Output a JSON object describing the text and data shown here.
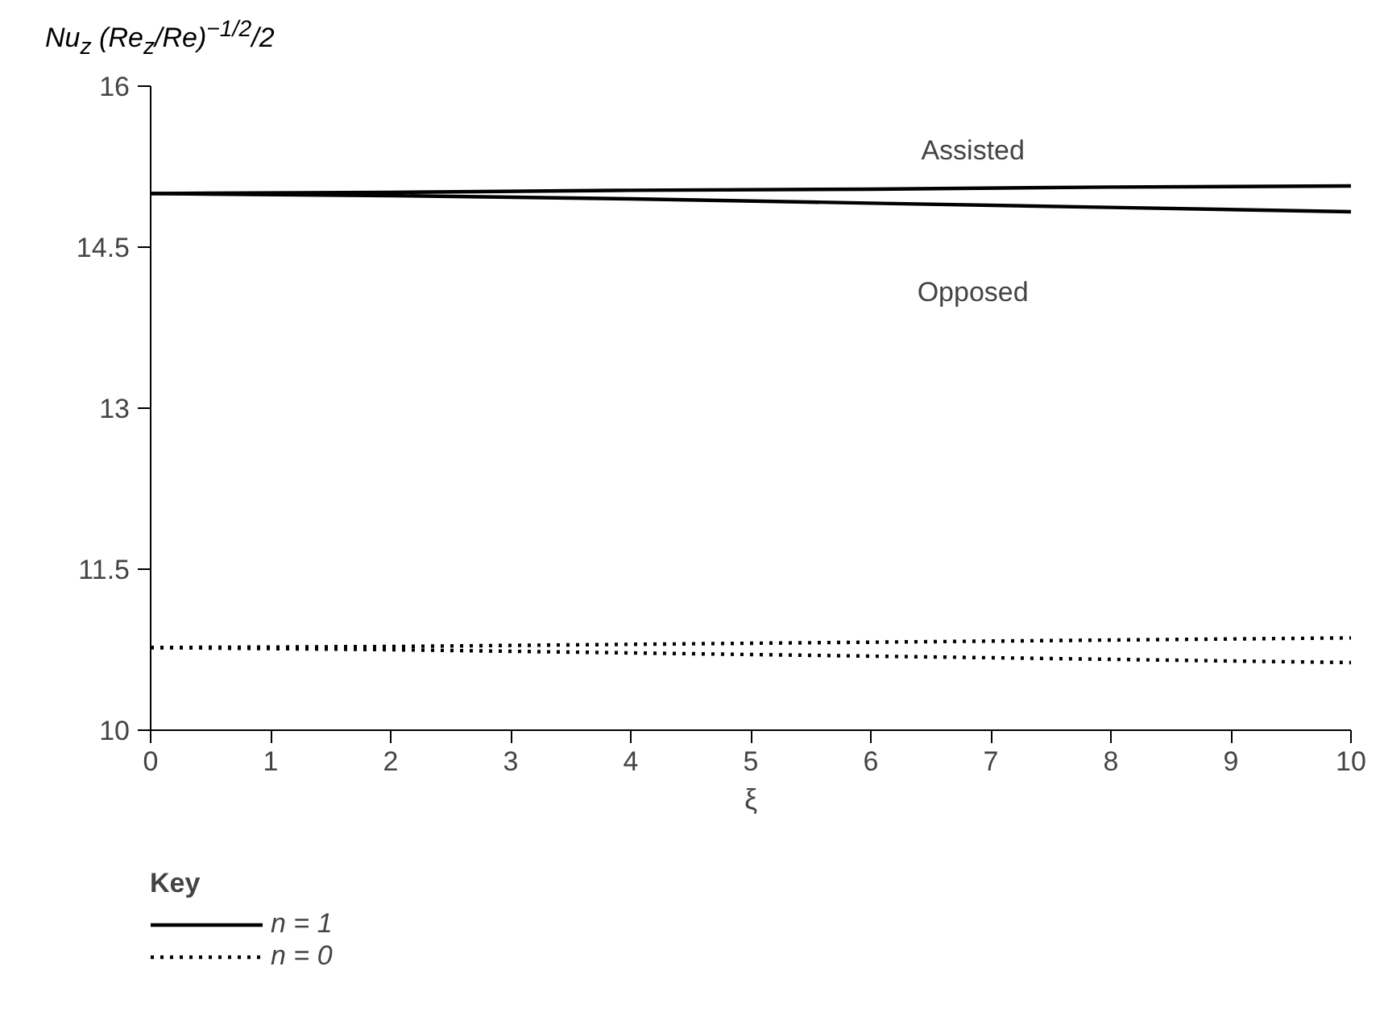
{
  "chart_data": {
    "type": "line",
    "ylabel": "Nu$_{z}$ (Re$_{z}$/Re)$^{−1/2}$/2",
    "xlabel": "ξ",
    "legend_title": "Key",
    "x": [
      0,
      2,
      4,
      6,
      8,
      10
    ],
    "series": [
      {
        "name": "n = 1",
        "color": "#000000",
        "line_style": "solid",
        "values": [
          15.0,
          15.01,
          15.03,
          15.04,
          15.06,
          15.07
        ]
      },
      {
        "color": "#000000",
        "line_style": "solid",
        "values": [
          15.0,
          14.98,
          14.95,
          14.91,
          14.87,
          14.83
        ]
      },
      {
        "name": "n = 0",
        "color": "#000000",
        "line_style": "dotted",
        "values": [
          10.77,
          10.78,
          10.8,
          10.82,
          10.84,
          10.86
        ]
      },
      {
        "color": "#000000",
        "line_style": "dotted",
        "values": [
          10.77,
          10.75,
          10.72,
          10.69,
          10.66,
          10.63
        ]
      }
    ],
    "xlim": [
      0,
      10
    ],
    "ylim": [
      10,
      16
    ],
    "xticks": [
      0,
      1,
      2,
      3,
      4,
      5,
      6,
      7,
      8,
      9,
      10
    ],
    "yticks": [
      10,
      11.5,
      13,
      14.5,
      16
    ],
    "grid": false,
    "legend": "bottom left",
    "annotations": [
      "Assisted",
      "Opposed"
    ]
  }
}
